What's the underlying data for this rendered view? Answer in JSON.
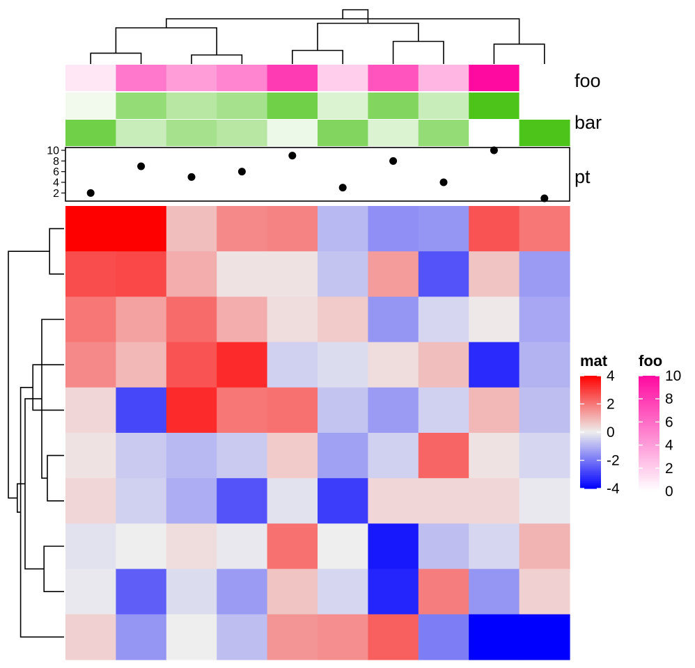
{
  "chart_data": {
    "type": "heatmap",
    "matrix_name": "mat",
    "matrix": [
      [
        4.0,
        4.0,
        0.8,
        1.7,
        1.8,
        -0.9,
        -1.6,
        -1.5,
        2.6,
        2.0
      ],
      [
        2.7,
        2.8,
        1.1,
        0.2,
        0.2,
        -0.7,
        1.4,
        -2.6,
        0.7,
        -1.4
      ],
      [
        2.0,
        1.3,
        2.2,
        1.1,
        0.3,
        0.6,
        -1.5,
        -0.4,
        0.1,
        -1.2
      ],
      [
        1.7,
        0.9,
        2.6,
        3.3,
        -0.5,
        -0.3,
        0.3,
        0.8,
        -3.3,
        -1.0
      ],
      [
        0.4,
        -2.8,
        3.3,
        2.0,
        2.1,
        -0.7,
        -1.4,
        -0.5,
        0.9,
        -0.8
      ],
      [
        0.2,
        -0.6,
        -0.9,
        -0.6,
        0.6,
        -1.3,
        -0.5,
        2.3,
        0.2,
        -0.4
      ],
      [
        0.4,
        -0.5,
        -1.1,
        -2.6,
        -0.2,
        -3.0,
        0.4,
        0.4,
        0.4,
        -0.1
      ],
      [
        -0.2,
        0.0,
        0.3,
        -0.1,
        2.1,
        0.0,
        -3.6,
        -0.8,
        -0.4,
        1.0
      ],
      [
        -0.1,
        -2.4,
        -0.3,
        -1.4,
        0.7,
        -0.4,
        -3.4,
        1.9,
        -1.5,
        0.5
      ],
      [
        0.5,
        -1.5,
        0.0,
        -0.8,
        1.5,
        1.6,
        2.4,
        -1.9,
        -4.0,
        -4.0
      ]
    ],
    "annotations": {
      "foo": {
        "label": "foo",
        "values": [
          1.0,
          5.5,
          4.0,
          5.0,
          8.0,
          2.0,
          7.0,
          3.0,
          10.0,
          0.0
        ]
      },
      "bar": {
        "label": "bar",
        "rows": [
          [
            0.8,
            6.0,
            4.0,
            5.0,
            8.0,
            2.0,
            7.0,
            3.0,
            10.0,
            0.0
          ],
          [
            8.0,
            3.0,
            5.0,
            4.0,
            1.0,
            7.0,
            2.0,
            6.0,
            0.0,
            10.0
          ]
        ]
      },
      "pt": {
        "label": "pt",
        "values": [
          2,
          7,
          5,
          6,
          9,
          3,
          8,
          4,
          10,
          1
        ],
        "ylim": [
          1,
          10
        ],
        "ticks": [
          "10",
          "8",
          "6",
          "4",
          "2"
        ],
        "tick_values": [
          10,
          8,
          6,
          4,
          2
        ]
      }
    },
    "legends": {
      "mat": {
        "title": "mat",
        "ticks": [
          "4",
          "2",
          "0",
          "-2",
          "-4"
        ],
        "tick_values": [
          4,
          2,
          0,
          -2,
          -4
        ],
        "colors": {
          "low": "#0000ff",
          "mid": "#eeeeee",
          "high": "#ff0000"
        },
        "range": [
          -4,
          4
        ]
      },
      "foo": {
        "title": "foo",
        "ticks": [
          "10",
          "8",
          "6",
          "4",
          "2",
          "0"
        ],
        "tick_values": [
          10,
          8,
          6,
          4,
          2,
          0
        ],
        "colors": {
          "low": "#ffffff",
          "high": "#ff0aa0"
        },
        "range": [
          0,
          10
        ]
      }
    },
    "bar_colors": {
      "low": "#ffffff",
      "high": "#4cc41a"
    },
    "column_dendrogram": [
      [
        0,
        1,
        1.2
      ],
      [
        2,
        3,
        1.0
      ],
      [
        4,
        5,
        1.5
      ],
      [
        6,
        7,
        2.5
      ],
      [
        8,
        9,
        2.2
      ],
      [
        10,
        11,
        4.0
      ],
      [
        12,
        13,
        4.5
      ],
      [
        14,
        15,
        5.0
      ],
      [
        16,
        17,
        6.0
      ]
    ],
    "row_dendrogram": [
      [
        5,
        6,
        1.5
      ],
      [
        7,
        8,
        1.8
      ],
      [
        0,
        1,
        1.3
      ],
      [
        2,
        10,
        2.0
      ],
      [
        3,
        4,
        2.8
      ],
      [
        11,
        13,
        3.5
      ],
      [
        14,
        9,
        3.9
      ],
      [
        15,
        16,
        4.2
      ],
      [
        12,
        17,
        5.0
      ]
    ]
  }
}
